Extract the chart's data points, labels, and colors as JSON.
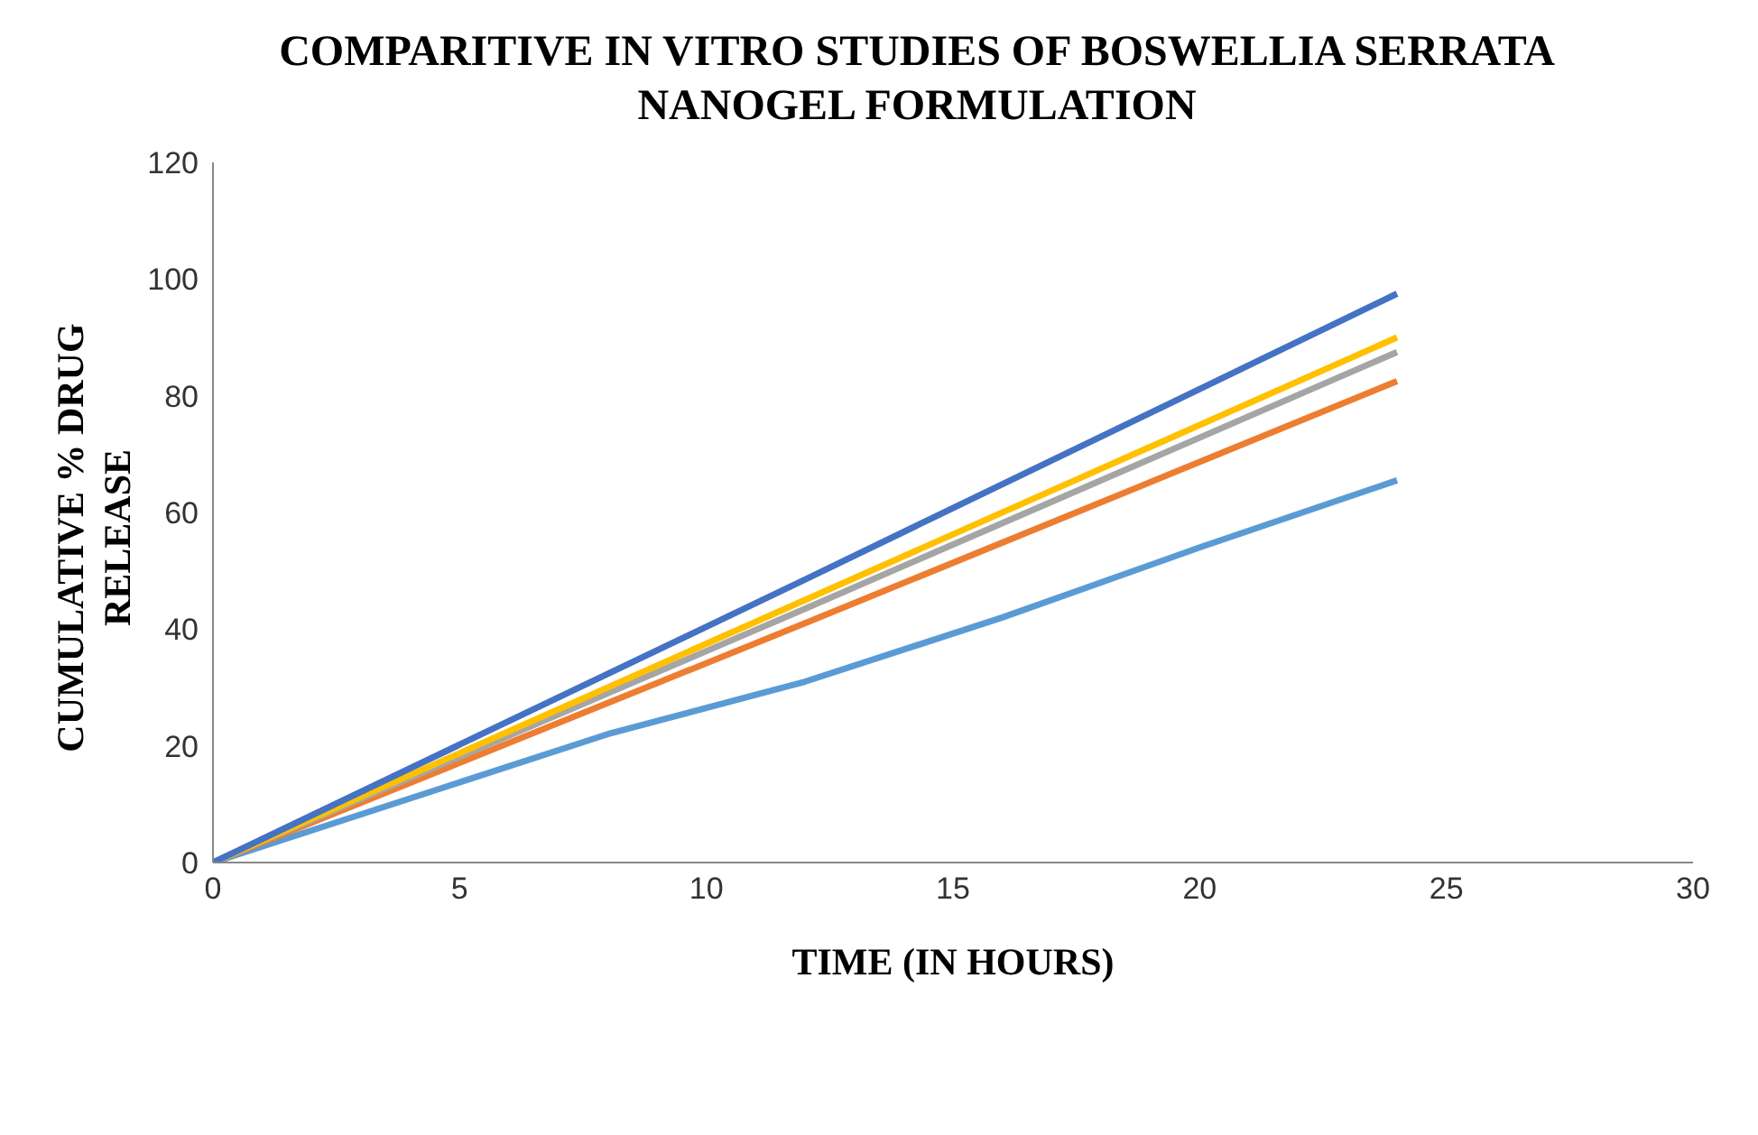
{
  "chart_data": {
    "type": "line",
    "title": "COMPARITIVE IN VITRO STUDIES OF BOSWELLIA SERRATA NANOGEL FORMULATION",
    "xlabel": "TIME (IN HOURS)",
    "ylabel": "CUMULATIVE % DRUG RELEASE",
    "xlim": [
      0,
      30
    ],
    "xticks": [
      0,
      5,
      10,
      15,
      20,
      25,
      30
    ],
    "ylim": [
      0,
      120
    ],
    "yticks": [
      0,
      20,
      40,
      60,
      80,
      100,
      120
    ],
    "grid": false,
    "legend": false,
    "marker": "none",
    "line_style": "solid",
    "series": [
      {
        "color": "#5b9bd5",
        "x": [
          0,
          8,
          12,
          16,
          20,
          24
        ],
        "values": [
          0,
          22,
          31,
          42,
          54,
          65.5
        ]
      },
      {
        "color": "#ed7d31",
        "x": [
          0,
          12,
          24
        ],
        "values": [
          0,
          41,
          82.5
        ]
      },
      {
        "color": "#a5a5a5",
        "x": [
          0,
          12,
          24
        ],
        "values": [
          0,
          43.5,
          87.5
        ]
      },
      {
        "color": "#ffc000",
        "x": [
          0,
          12,
          24
        ],
        "values": [
          0,
          45,
          90
        ]
      },
      {
        "color": "#4472c4",
        "x": [
          0,
          12,
          24
        ],
        "values": [
          0,
          48.5,
          97.5
        ]
      }
    ]
  }
}
